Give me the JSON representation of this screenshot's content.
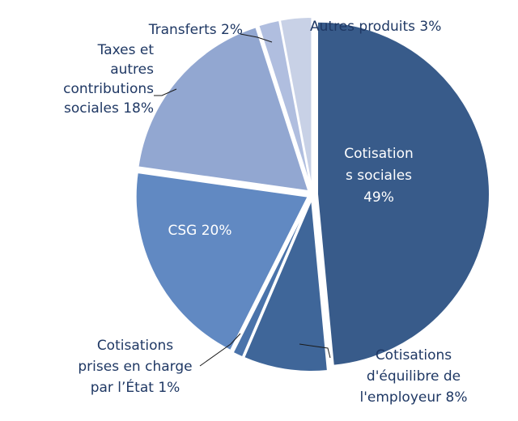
{
  "chart_data": {
    "type": "pie",
    "title": "",
    "start_angle_deg": 0,
    "direction": "clockwise",
    "slices": [
      {
        "name": "Cotisations sociales",
        "value": 49,
        "label_lines": [
          "Cotisation",
          "s sociales",
          "49%"
        ],
        "color": "#385b8a"
      },
      {
        "name": "Cotisations d'équilibre de l'employeur",
        "value": 8,
        "label_lines": [
          "Cotisations",
          "d'équilibre de",
          "l'employeur 8%"
        ],
        "color": "#3f6699"
      },
      {
        "name": "Cotisations prises en charge par l'État",
        "value": 1,
        "label_lines": [
          "Cotisations",
          "prises en charge",
          "par l’État 1%"
        ],
        "color": "#4a73aa"
      },
      {
        "name": "CSG",
        "value": 20,
        "label_lines": [
          "CSG  20%"
        ],
        "color": "#6189c2"
      },
      {
        "name": "Taxes et autres contributions sociales",
        "value": 18,
        "label_lines": [
          "Taxes et",
          "autres",
          "contributions",
          "sociales 18%"
        ],
        "color": "#92a7d1"
      },
      {
        "name": "Transferts",
        "value": 2,
        "label_lines": [
          "Transferts  2%"
        ],
        "color": "#b0bedf"
      },
      {
        "name": "Autres produits",
        "value": 3,
        "label_lines": [
          "Autres produits 3%"
        ],
        "color": "#c8d1e6"
      }
    ]
  }
}
